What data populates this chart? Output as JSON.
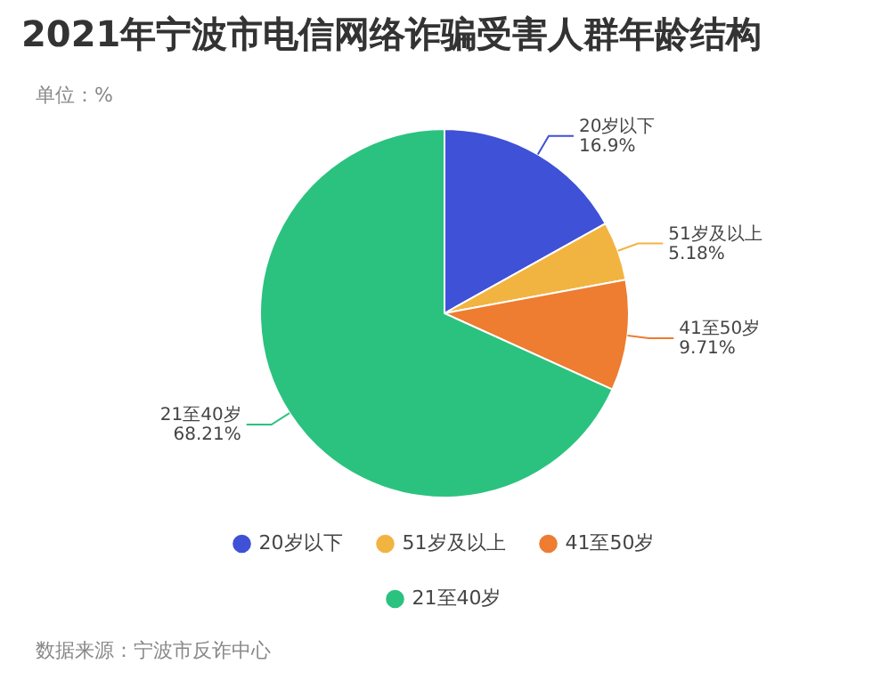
{
  "chart_data": {
    "type": "pie",
    "title": "2021年宁波市电信网络诈骗受害人群年龄结构",
    "subtitle": "单位：%",
    "categories": [
      "20岁以下",
      "51岁及以上",
      "41至50岁",
      "21至40岁"
    ],
    "values": [
      16.9,
      5.18,
      9.71,
      68.21
    ],
    "value_labels": [
      "16.9%",
      "5.18%",
      "9.71%",
      "68.21%"
    ],
    "colors": [
      "#3f51d6",
      "#f2b440",
      "#ee7c31",
      "#2bc27f"
    ],
    "legend": "bottom",
    "annotations": [
      "数据来源：宁波市反诈中心"
    ]
  }
}
